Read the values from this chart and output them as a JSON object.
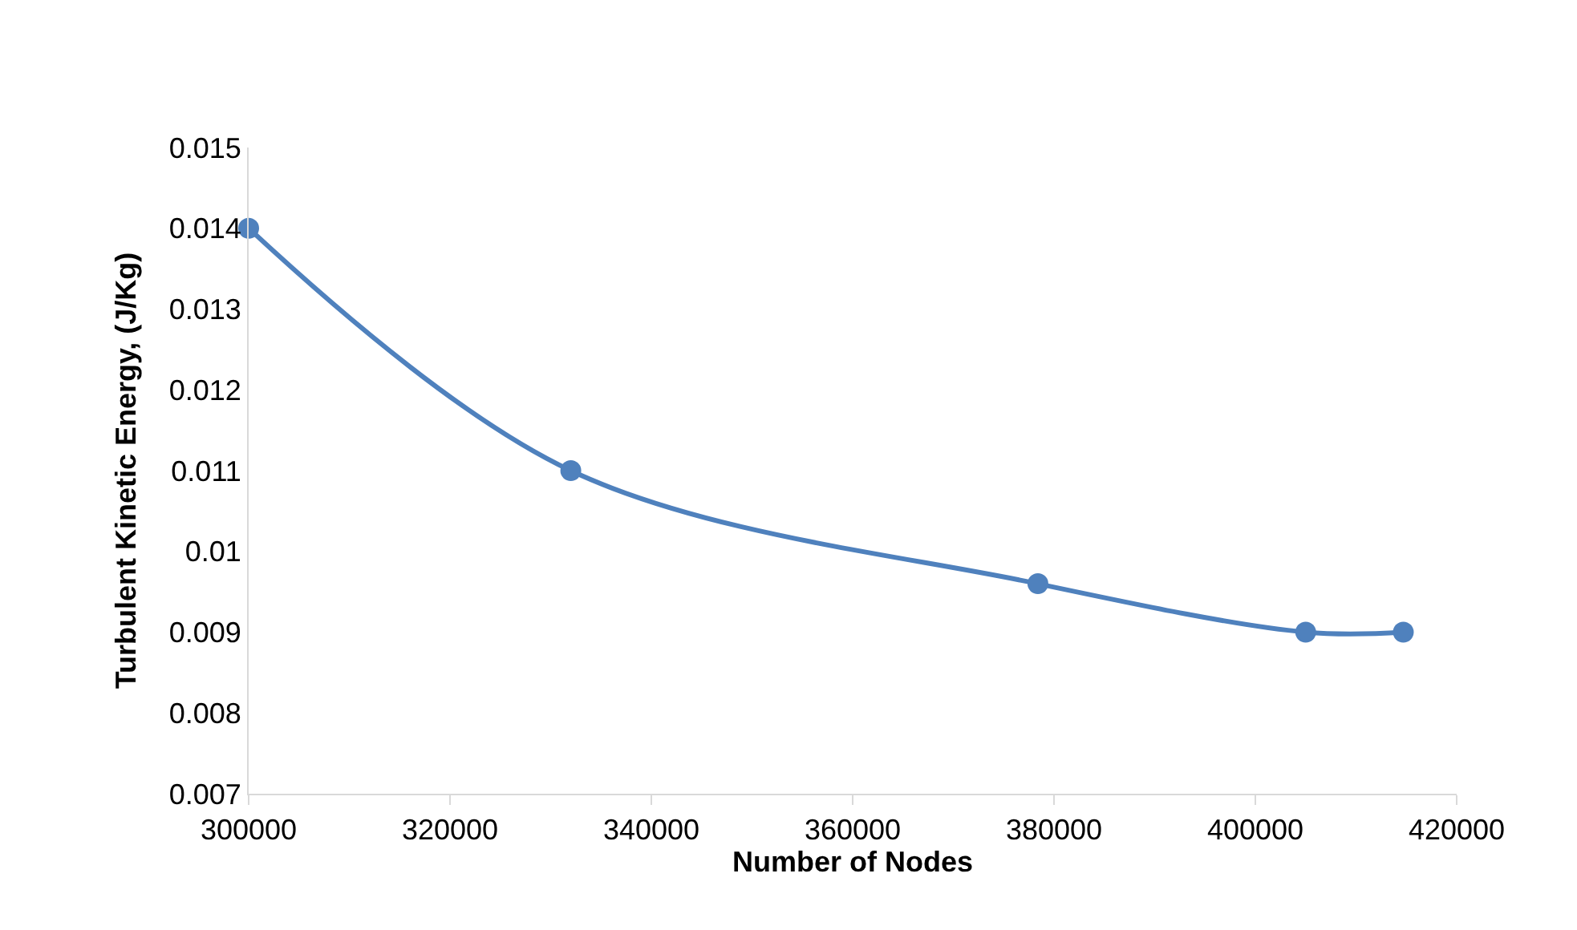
{
  "chart_data": {
    "type": "line",
    "xlabel": "Number of Nodes",
    "ylabel": "Turbulent Kinetic Energy, (J/Kg)",
    "x": [
      300000,
      332000,
      378400,
      405000,
      414700
    ],
    "series": [
      {
        "color": "#4f81bd",
        "values": [
          0.014,
          0.011,
          0.0096,
          0.009,
          0.009
        ]
      }
    ],
    "xlim": [
      300000,
      420000
    ],
    "xticks": [
      300000,
      320000,
      340000,
      360000,
      380000,
      400000,
      420000
    ],
    "ylim": [
      0.007,
      0.015
    ],
    "yticks": [
      0.007,
      0.008,
      0.009,
      0.01,
      0.011,
      0.012,
      0.013,
      0.014,
      0.015
    ],
    "legend": false,
    "marker": "circle",
    "line_style": "solid"
  }
}
